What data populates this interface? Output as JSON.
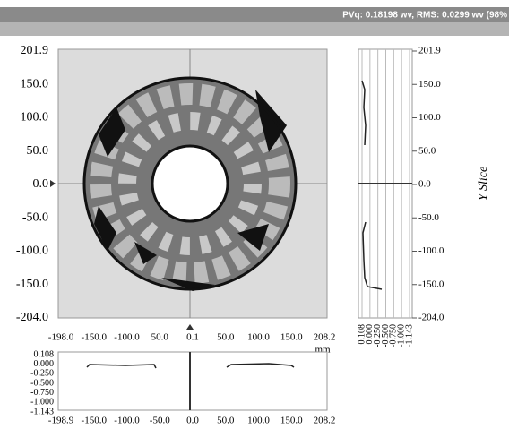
{
  "header": {
    "status": "PVq: 0.18198 wv, RMS: 0.0299 wv (98%"
  },
  "main": {
    "y_ticks": [
      "201.9",
      "150.0",
      "100.0",
      "50.0",
      "0.0",
      "-50.0",
      "-100.0",
      "-150.0",
      "-204.0"
    ],
    "x_ticks": [
      "-198.0",
      "-150.0",
      "-100.0",
      "50.0",
      "0.1",
      "50.0",
      "100.0",
      "150.0",
      "208.2"
    ],
    "x_unit": "mm"
  },
  "y_slice": {
    "title": "Y Slice",
    "y_ticks": [
      "201.9",
      "150.0",
      "100.0",
      "50.0",
      "0.0",
      "-50.0",
      "-100.0",
      "-150.0",
      "-204.0"
    ],
    "x_ticks": [
      "0.108",
      "0.000",
      "-0.250",
      "-0.500",
      "-0.750",
      "-1.000",
      "-1.143"
    ]
  },
  "x_slice": {
    "y_ticks": [
      "0.108",
      "0.000",
      "-0.250",
      "-0.500",
      "-0.750",
      "-1.000",
      "-1.143"
    ],
    "x_ticks": [
      "-198.9",
      "-150.0",
      "-100.0",
      "-50.0",
      "0.0",
      "50.0",
      "100.0",
      "150.0",
      "208.2"
    ]
  }
}
